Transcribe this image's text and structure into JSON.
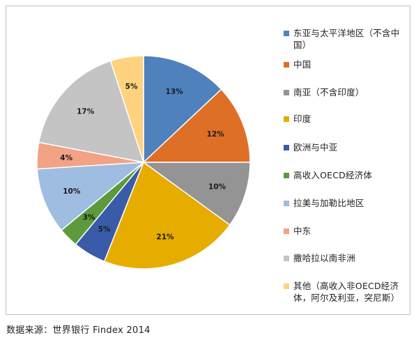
{
  "chart_data": {
    "type": "pie",
    "title": "",
    "slices": [
      {
        "label": "东亚与太平洋地区（不含中国）",
        "value": 13,
        "display": "13%",
        "color": "#4f81bd"
      },
      {
        "label": "中国",
        "value": 12,
        "display": "12%",
        "color": "#dd6f27"
      },
      {
        "label": "南亚（不含印度）",
        "value": 10,
        "display": "10%",
        "color": "#949494"
      },
      {
        "label": "印度",
        "value": 21,
        "display": "21%",
        "color": "#e6ac00"
      },
      {
        "label": "欧洲与中亚",
        "value": 5,
        "display": "5%",
        "color": "#3a5ba8"
      },
      {
        "label": "高收入OECD经济体",
        "value": 3,
        "display": "3%",
        "color": "#5c9a3c"
      },
      {
        "label": "拉美与加勒比地区",
        "value": 10,
        "display": "10%",
        "color": "#9ebde0"
      },
      {
        "label": "中东",
        "value": 4,
        "display": "4%",
        "color": "#f2a285"
      },
      {
        "label": "撒哈拉以南非洲",
        "value": 17,
        "display": "17%",
        "color": "#c4c4c4"
      },
      {
        "label": "其他（高收入非OECD经济体，阿尔及利亚，突尼斯）",
        "value": 5,
        "display": "5%",
        "color": "#ffd27f"
      }
    ],
    "legend_position": "right"
  },
  "legend": {
    "items": [
      {
        "lines": [
          "东亚与太平洋地区（不含中",
          "国）"
        ]
      },
      {
        "lines": [
          "中国"
        ]
      },
      {
        "lines": [
          "南亚（不含印度）"
        ]
      },
      {
        "lines": [
          "印度"
        ]
      },
      {
        "lines": [
          "欧洲与中亚"
        ]
      },
      {
        "lines": [
          "高收入OECD经济体"
        ]
      },
      {
        "lines": [
          "拉美与加勒比地区"
        ]
      },
      {
        "lines": [
          "中东"
        ]
      },
      {
        "lines": [
          "撒哈拉以南非洲"
        ]
      },
      {
        "lines": [
          "其他（高收入非OECD经济",
          "体，阿尔及利亚，突尼斯）"
        ]
      }
    ]
  },
  "source_note": "数据来源：世界银行 Findex 2014"
}
